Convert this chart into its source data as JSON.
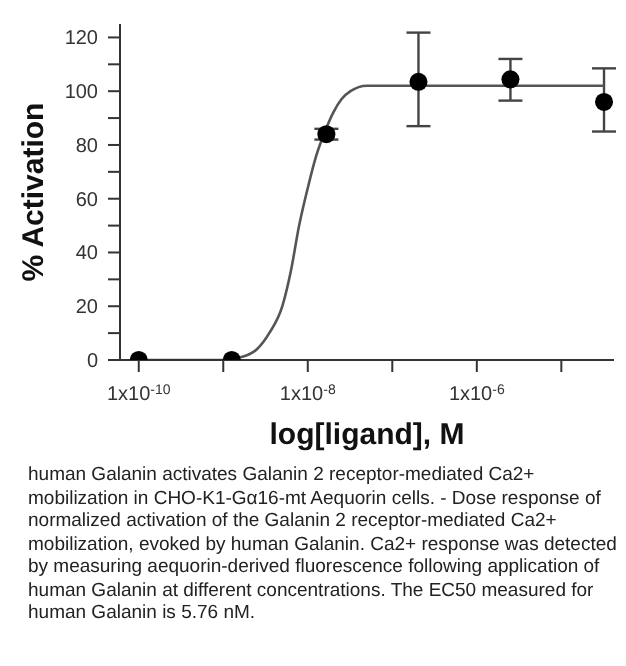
{
  "chart_data": {
    "type": "scatter",
    "xlabel": "log[ligand], M",
    "ylabel": "% Activation",
    "log": "x",
    "marker": "circle",
    "grid": false,
    "legend": false,
    "xlim": [
      6e-11,
      4.2e-05
    ],
    "xticks": [
      {
        "value": 1e-10,
        "label": "1x10$^{-10}$"
      },
      {
        "value": 1e-09,
        "label": null
      },
      {
        "value": 1e-08,
        "label": "1x10$^{-8}$"
      },
      {
        "value": 1e-07,
        "label": null
      },
      {
        "value": 1e-06,
        "label": "1x10$^{-6}$"
      },
      {
        "value": 1e-05,
        "label": null
      }
    ],
    "ylim": [
      0,
      125
    ],
    "yticks": [
      0,
      {
        "value": 10,
        "label": null
      },
      20,
      {
        "value": 30,
        "label": null
      },
      40,
      {
        "value": 50,
        "label": null
      },
      60,
      {
        "value": 70,
        "label": null
      },
      80,
      {
        "value": 90,
        "label": null
      },
      100,
      {
        "value": 110,
        "label": null
      },
      120
    ],
    "series": [
      {
        "color": "#000000",
        "x": [
          1e-10,
          1.26e-09,
          1.66e-08,
          2.04e-07,
          2.5e-06,
          3.2e-05
        ],
        "values": [
          0,
          0,
          84,
          103.5,
          104.4,
          96
        ],
        "errors": [
          null,
          null,
          2,
          [
            87,
            121.8
          ],
          [
            96.5,
            112
          ],
          [
            85,
            108.5
          ]
        ]
      },
      {
        "type": "line",
        "color": "#555555",
        "marker": "none",
        "x": [
          1e-10,
          1e-09,
          1.6e-09,
          2.5e-09,
          3.5e-09,
          5e-09,
          6.3e-09,
          7.9e-09,
          1e-08,
          1.26e-08,
          1.6e-08,
          2e-08,
          2.5e-08,
          3.2e-08,
          5e-08,
          1e-07,
          3.2e-05
        ],
        "values": [
          0,
          0,
          1,
          4,
          10,
          20,
          33,
          50,
          64,
          76,
          85,
          92,
          97,
          100,
          102,
          102,
          102
        ]
      }
    ],
    "annotations": [
      "human Galanin activates Galanin 2 receptor-mediated Ca2+ mobilization in CHO-K1-Gα16-mt Aequorin cells. - Dose response of normalized activation of the Galanin 2 receptor-mediated Ca2+ mobilization, evoked by human Galanin. Ca2+ response was detected by measuring aequorin-derived fluorescence following application of human Galanin at different concentrations. The EC50 measured for human Galanin is 5.76 nM."
    ]
  }
}
